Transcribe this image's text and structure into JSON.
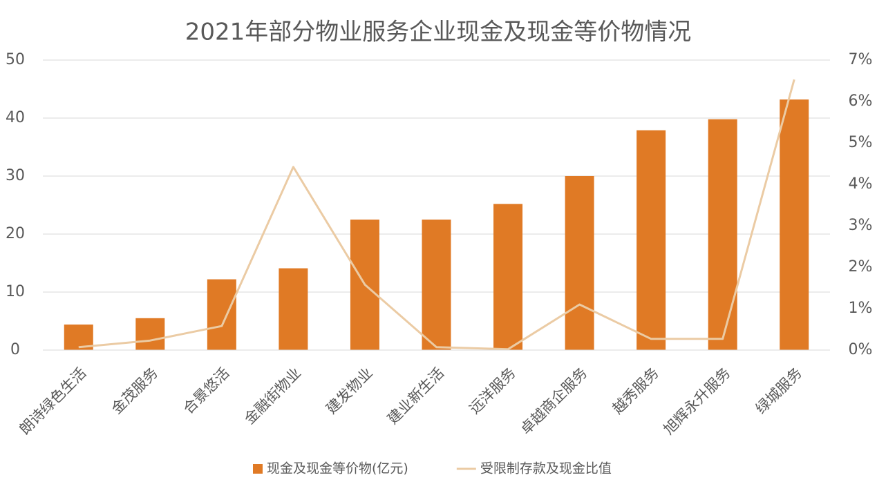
{
  "chart_data": {
    "type": "bar",
    "title": "2021年部分物业服务企业现金及现金等价物情况",
    "categories": [
      "朗诗绿色生活",
      "金茂服务",
      "合景悠活",
      "金融街物业",
      "建发物业",
      "建业新生活",
      "远洋服务",
      "卓越商企服务",
      "越秀服务",
      "旭辉永升服务",
      "绿城服务"
    ],
    "series": [
      {
        "name": "现金及现金等价物(亿元)",
        "type": "bar",
        "color": "#e07a25",
        "values": [
          4.4,
          5.5,
          12.2,
          14.1,
          22.5,
          22.5,
          25.2,
          30,
          37.9,
          39.8,
          43.2
        ]
      },
      {
        "name": "受限制存款及现金比值",
        "type": "line",
        "axis": "y2",
        "color": "#ebcba4",
        "values": [
          0.07,
          0.23,
          0.58,
          4.42,
          1.58,
          0.07,
          0.02,
          1.1,
          0.27,
          0.27,
          6.53
        ]
      }
    ],
    "ylim": [
      0,
      50
    ],
    "yticks": [
      0,
      10,
      20,
      30,
      40,
      50
    ],
    "y2lim": [
      0,
      7
    ],
    "y2ticks": [
      {
        "value": 0,
        "label": "0%"
      },
      {
        "value": 1,
        "label": "1%"
      },
      {
        "value": 2,
        "label": "2%"
      },
      {
        "value": 3,
        "label": "3%"
      },
      {
        "value": 4,
        "label": "4%"
      },
      {
        "value": 5,
        "label": "5%"
      },
      {
        "value": 6,
        "label": "6%"
      },
      {
        "value": 7,
        "label": "7%"
      }
    ],
    "grid": true,
    "legend": "bottom"
  }
}
